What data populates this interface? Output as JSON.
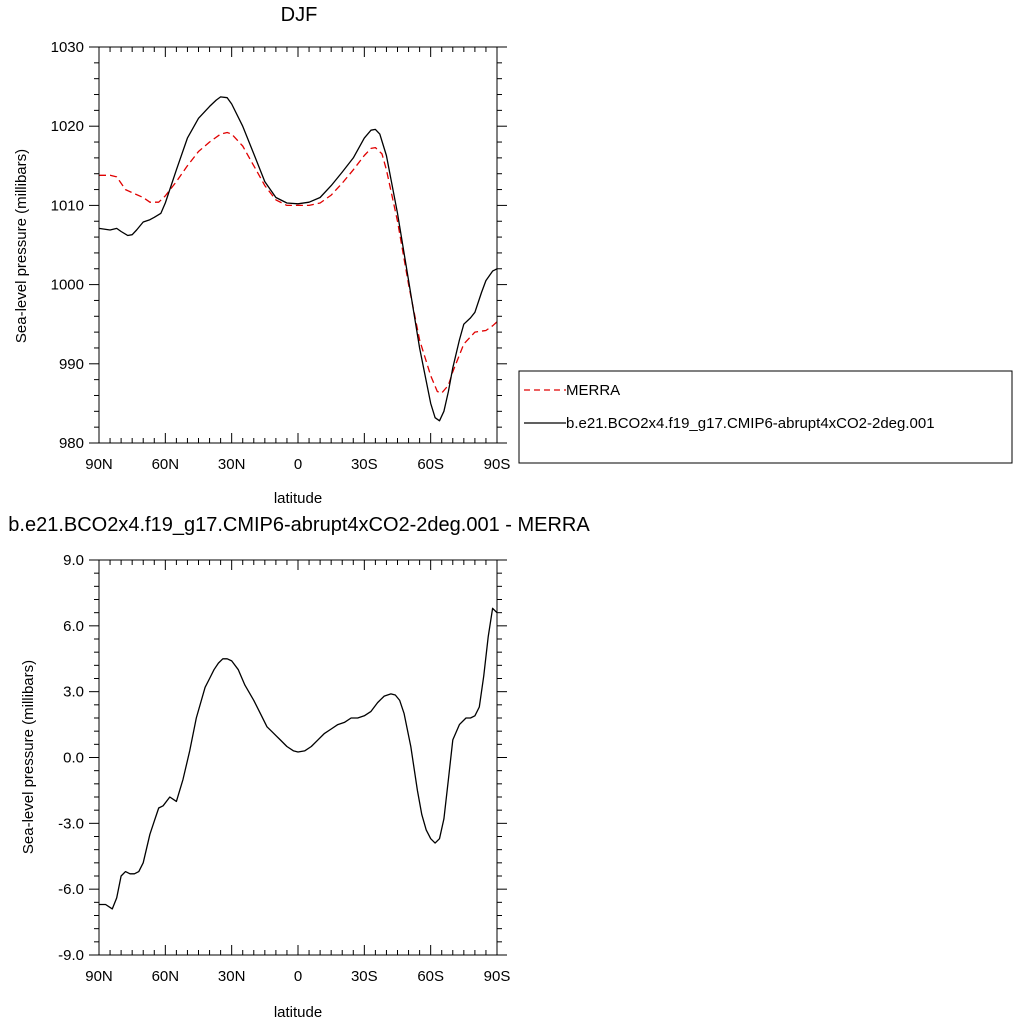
{
  "chart_data": [
    {
      "type": "line",
      "title": "DJF",
      "xlabel": "latitude",
      "ylabel": "Sea-level pressure (millibars)",
      "xlim": [
        90,
        -90
      ],
      "ylim": [
        980,
        1030
      ],
      "xticks": [
        90,
        60,
        30,
        0,
        -30,
        -60,
        -90
      ],
      "xtick_labels": [
        "90N",
        "60N",
        "30N",
        "0",
        "30S",
        "60S",
        "90S"
      ],
      "yticks": [
        980,
        990,
        1000,
        1010,
        1020,
        1030
      ],
      "ytick_labels": [
        "980",
        "990",
        "1000",
        "1010",
        "1020",
        "1030"
      ],
      "legend_position": "right",
      "series": [
        {
          "name": "MERRA",
          "color": "#e00000",
          "dash": "dashed",
          "x": [
            90,
            85,
            82,
            78,
            75,
            70,
            67,
            63,
            60,
            55,
            50,
            45,
            40,
            35,
            32,
            30,
            25,
            20,
            15,
            10,
            5,
            0,
            -5,
            -10,
            -15,
            -20,
            -25,
            -30,
            -33,
            -35,
            -38,
            -40,
            -45,
            -50,
            -55,
            -60,
            -63,
            -65,
            -68,
            -70,
            -75,
            -80,
            -85,
            -88,
            -90
          ],
          "y": [
            1013.8,
            1013.8,
            1013.6,
            1012.0,
            1011.6,
            1011.0,
            1010.4,
            1010.4,
            1011.2,
            1013.0,
            1015.0,
            1016.8,
            1018.0,
            1019.0,
            1019.2,
            1019.0,
            1017.5,
            1015.0,
            1012.5,
            1010.7,
            1010.0,
            1010.0,
            1010.0,
            1010.3,
            1011.3,
            1012.8,
            1014.5,
            1016.3,
            1017.2,
            1017.3,
            1016.5,
            1014.5,
            1008.0,
            1000.0,
            993.0,
            988.5,
            986.5,
            986.3,
            987.3,
            989.0,
            992.5,
            994.0,
            994.2,
            994.8,
            995.3
          ]
        },
        {
          "name": "b.e21.BCO2x4.f19_g17.CMIP6-abrupt4xCO2-2deg.001",
          "color": "#000000",
          "dash": "solid",
          "x": [
            90,
            85,
            82,
            80,
            77,
            75,
            73,
            70,
            67,
            65,
            62,
            60,
            55,
            50,
            45,
            40,
            37,
            35,
            32,
            30,
            25,
            20,
            15,
            10,
            5,
            0,
            -5,
            -10,
            -15,
            -20,
            -25,
            -30,
            -33,
            -35,
            -37,
            -40,
            -45,
            -50,
            -55,
            -60,
            -62,
            -64,
            -66,
            -68,
            -70,
            -73,
            -75,
            -78,
            -80,
            -83,
            -85,
            -88,
            -90
          ],
          "y": [
            1007.1,
            1006.9,
            1007.1,
            1006.7,
            1006.2,
            1006.3,
            1006.9,
            1007.9,
            1008.2,
            1008.5,
            1009.0,
            1010.3,
            1014.5,
            1018.5,
            1021.0,
            1022.5,
            1023.3,
            1023.7,
            1023.6,
            1022.8,
            1020.0,
            1016.5,
            1013.0,
            1011.0,
            1010.3,
            1010.2,
            1010.4,
            1011.0,
            1012.5,
            1014.2,
            1016.0,
            1018.5,
            1019.5,
            1019.6,
            1019.0,
            1016.3,
            1009.0,
            1000.5,
            992.0,
            985.0,
            983.2,
            982.8,
            984.0,
            986.5,
            989.5,
            993.0,
            995.0,
            995.8,
            996.5,
            999.0,
            1000.5,
            1001.7,
            1002.0
          ]
        }
      ]
    },
    {
      "type": "line",
      "title": "b.e21.BCO2x4.f19_g17.CMIP6-abrupt4xCO2-2deg.001 - MERRA",
      "xlabel": "latitude",
      "ylabel": "Sea-level pressure (millibars)",
      "xlim": [
        90,
        -90
      ],
      "ylim": [
        -9,
        9
      ],
      "xticks": [
        90,
        60,
        30,
        0,
        -30,
        -60,
        -90
      ],
      "xtick_labels": [
        "90N",
        "60N",
        "30N",
        "0",
        "30S",
        "60S",
        "90S"
      ],
      "yticks": [
        -9,
        -6,
        -3,
        0,
        3,
        6,
        9
      ],
      "ytick_labels": [
        "-9.0",
        "-6.0",
        "-3.0",
        "0.0",
        "3.0",
        "6.0",
        "9.0"
      ],
      "series": [
        {
          "color": "#000000",
          "dash": "solid",
          "x": [
            90,
            87,
            84,
            82,
            80,
            78,
            76,
            74,
            72,
            70,
            67,
            65,
            63,
            61,
            58,
            55,
            52,
            49,
            46,
            42,
            40,
            38,
            36,
            34,
            32,
            30,
            27,
            24,
            20,
            17,
            14,
            12,
            10,
            8,
            5,
            2,
            0,
            -3,
            -6,
            -9,
            -12,
            -15,
            -18,
            -21,
            -24,
            -27,
            -30,
            -33,
            -36,
            -39,
            -42,
            -44,
            -46,
            -48,
            -51,
            -54,
            -56,
            -58,
            -60,
            -62,
            -64,
            -66,
            -68,
            -70,
            -73,
            -76,
            -78,
            -80,
            -82,
            -84,
            -86,
            -88,
            -90
          ],
          "y": [
            -6.7,
            -6.7,
            -6.9,
            -6.4,
            -5.4,
            -5.2,
            -5.3,
            -5.3,
            -5.2,
            -4.8,
            -3.5,
            -2.9,
            -2.3,
            -2.2,
            -1.8,
            -2.0,
            -1.0,
            0.3,
            1.8,
            3.2,
            3.6,
            4.0,
            4.3,
            4.5,
            4.5,
            4.4,
            4.0,
            3.3,
            2.6,
            2.0,
            1.4,
            1.2,
            1.0,
            0.8,
            0.5,
            0.3,
            0.25,
            0.3,
            0.5,
            0.8,
            1.1,
            1.3,
            1.5,
            1.6,
            1.8,
            1.8,
            1.9,
            2.1,
            2.5,
            2.8,
            2.9,
            2.85,
            2.6,
            2.0,
            0.5,
            -1.5,
            -2.6,
            -3.3,
            -3.7,
            -3.9,
            -3.7,
            -2.8,
            -1.0,
            0.8,
            1.5,
            1.8,
            1.8,
            1.9,
            2.3,
            3.7,
            5.5,
            6.8,
            6.6
          ]
        }
      ]
    }
  ]
}
